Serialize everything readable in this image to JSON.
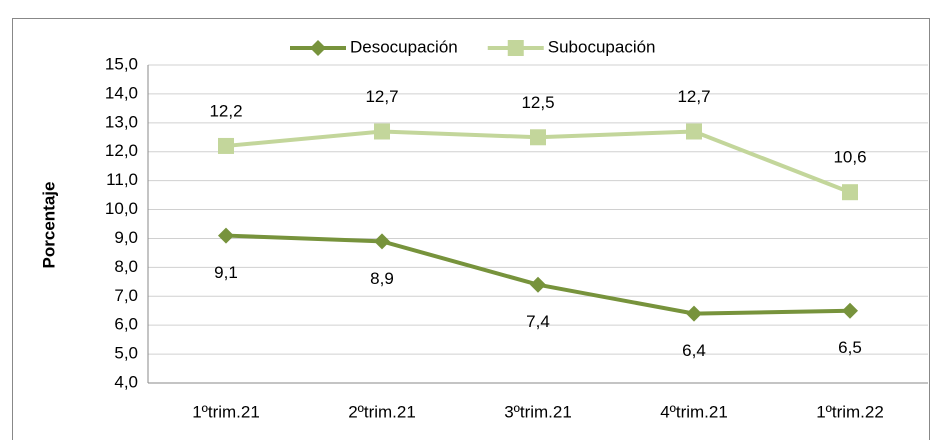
{
  "chart_data": {
    "type": "line",
    "y_label": "Porcentaje",
    "categories": [
      "1ºtrim.21",
      "2ºtrim.21",
      "3ºtrim.21",
      "4ºtrim.21",
      "1ºtrim.22"
    ],
    "series": [
      {
        "name": "Desocupación",
        "color": "#77933c",
        "marker": "diamond",
        "label_position": "below",
        "values": [
          9.1,
          8.9,
          7.4,
          6.4,
          6.5
        ],
        "value_labels": [
          "9,1",
          "8,9",
          "7,4",
          "6,4",
          "6,5"
        ]
      },
      {
        "name": "Subocupación",
        "color": "#c3d69b",
        "marker": "square",
        "label_position": "above",
        "values": [
          12.2,
          12.7,
          12.5,
          12.7,
          10.6
        ],
        "value_labels": [
          "12,2",
          "12,7",
          "12,5",
          "12,7",
          "10,6"
        ]
      }
    ],
    "ylim": [
      4,
      15
    ],
    "yticks": [
      {
        "value": 4,
        "label": "4,0"
      },
      {
        "value": 5,
        "label": "5,0"
      },
      {
        "value": 6,
        "label": "6,0"
      },
      {
        "value": 7,
        "label": "7,0"
      },
      {
        "value": 8,
        "label": "8,0"
      },
      {
        "value": 9,
        "label": "9,0"
      },
      {
        "value": 10,
        "label": "10,0"
      },
      {
        "value": 11,
        "label": "11,0"
      },
      {
        "value": 12,
        "label": "12,0"
      },
      {
        "value": 13,
        "label": "13,0"
      },
      {
        "value": 14,
        "label": "14,0"
      },
      {
        "value": 15,
        "label": "15,0"
      }
    ],
    "grid": true,
    "legend": "top"
  }
}
